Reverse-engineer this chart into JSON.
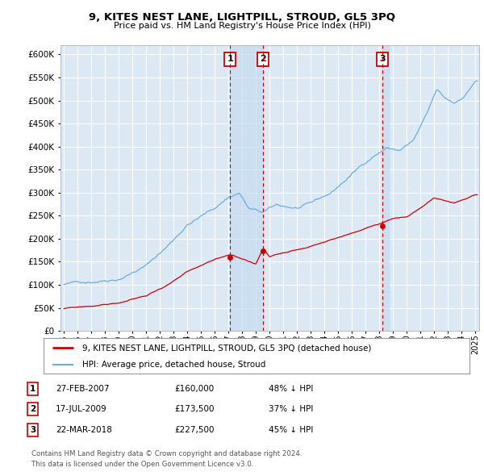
{
  "title": "9, KITES NEST LANE, LIGHTPILL, STROUD, GL5 3PQ",
  "subtitle": "Price paid vs. HM Land Registry's House Price Index (HPI)",
  "background_color": "#dce9f5",
  "plot_bg_color": "#dce9f5",
  "grid_color": "#ffffff",
  "hpi_color": "#6aaee0",
  "price_color": "#cc0000",
  "marker_color": "#cc0000",
  "vline_color": "#cc0000",
  "shade_color": "#c5dbf0",
  "ylim": [
    0,
    620000
  ],
  "yticks": [
    0,
    50000,
    100000,
    150000,
    200000,
    250000,
    300000,
    350000,
    400000,
    450000,
    500000,
    550000,
    600000
  ],
  "xlim_start": 1994.75,
  "xlim_end": 2025.3,
  "transactions": [
    {
      "num": 1,
      "date_dec": 2007.12,
      "price": 160000,
      "label": "27-FEB-2007",
      "price_str": "£160,000",
      "pct": "48% ↓ HPI"
    },
    {
      "num": 2,
      "date_dec": 2009.54,
      "price": 173500,
      "label": "17-JUL-2009",
      "price_str": "£173,500",
      "pct": "37% ↓ HPI"
    },
    {
      "num": 3,
      "date_dec": 2018.22,
      "price": 227500,
      "label": "22-MAR-2018",
      "price_str": "£227,500",
      "pct": "45% ↓ HPI"
    }
  ],
  "legend_line1": "9, KITES NEST LANE, LIGHTPILL, STROUD, GL5 3PQ (detached house)",
  "legend_line2": "HPI: Average price, detached house, Stroud",
  "footnote1": "Contains HM Land Registry data © Crown copyright and database right 2024.",
  "footnote2": "This data is licensed under the Open Government Licence v3.0."
}
